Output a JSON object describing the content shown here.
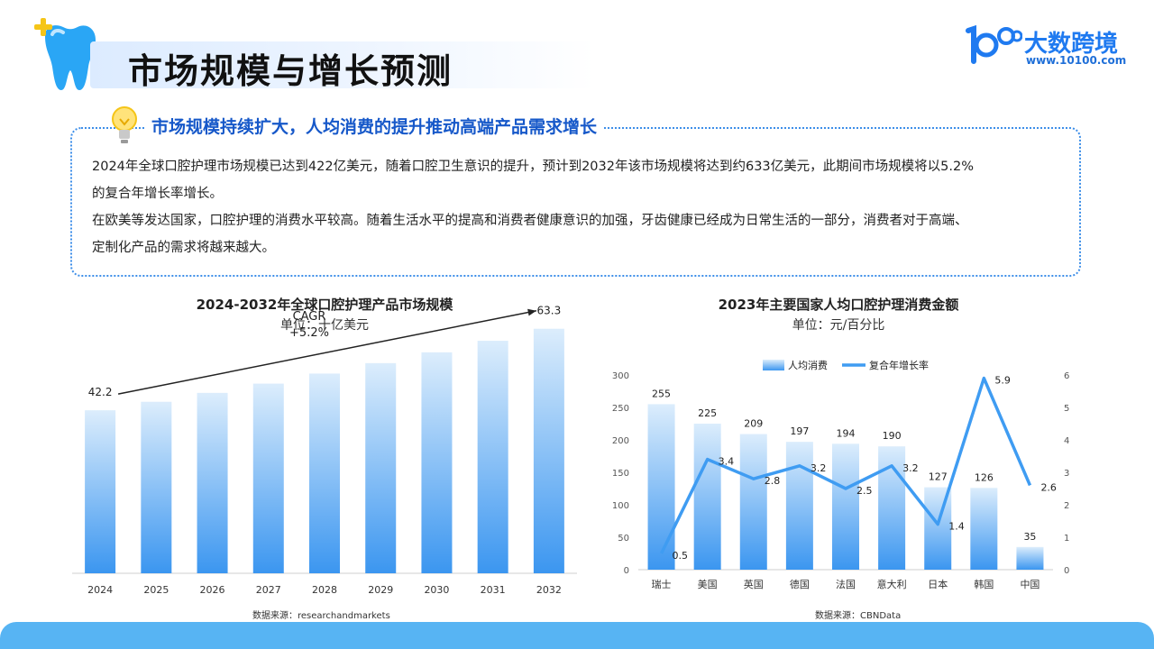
{
  "header": {
    "title": "市场规模与增长预测",
    "logo_text": "大数跨境",
    "logo_url": "www.10100.com",
    "logo_mark": "100"
  },
  "summary": {
    "heading": "市场规模持续扩大，人均消费的提升推动高端产品需求增长",
    "lines": [
      "2024年全球口腔护理市场规模已达到422亿美元，随着口腔卫生意识的提升，预计到2032年该市场规模将达到约633亿美元，此期间市场规模将以5.2%",
      "的复合年增长率增长。",
      "在欧美等发达国家，口腔护理的消费水平较高。随着生活水平的提高和消费者健康意识的加强，牙齿健康已经成为日常生活的一部分，消费者对于高端、",
      "定制化产品的需求将越来越大。"
    ]
  },
  "chart_data": [
    {
      "type": "bar",
      "title": "2024-2032年全球口腔护理产品市场规模",
      "unit": "单位：十亿美元",
      "categories": [
        "2024",
        "2025",
        "2026",
        "2027",
        "2028",
        "2029",
        "2030",
        "2031",
        "2032"
      ],
      "values": [
        42.2,
        44.4,
        46.7,
        49.1,
        51.7,
        54.4,
        57.2,
        60.2,
        63.3
      ],
      "data_labels": {
        "2024": "42.2",
        "2032": "63.3"
      },
      "annotation": {
        "line1": "CAGR",
        "line2": "+5.2%"
      },
      "ylim": [
        0,
        70
      ],
      "source": "数据来源：researchandmarkets"
    },
    {
      "type": "bar+line",
      "title": "2023年主要国家人均口腔护理消费金额",
      "unit": "单位：元/百分比",
      "categories": [
        "瑞士",
        "美国",
        "英国",
        "德国",
        "法国",
        "意大利",
        "日本",
        "韩国",
        "中国"
      ],
      "series": [
        {
          "name": "人均消费",
          "axis": "left",
          "values": [
            255,
            225,
            209,
            197,
            194,
            190,
            127,
            126,
            35
          ]
        },
        {
          "name": "复合年增长率",
          "axis": "right",
          "values": [
            0.5,
            3.4,
            2.8,
            3.2,
            2.5,
            3.2,
            1.4,
            5.9,
            2.6
          ]
        }
      ],
      "left_axis": {
        "min": 0,
        "max": 300,
        "ticks": [
          "0",
          "50",
          "100",
          "150",
          "200",
          "250",
          "300"
        ]
      },
      "right_axis": {
        "min": 0,
        "max": 6,
        "ticks": [
          "0",
          "1",
          "2",
          "3",
          "4",
          "5",
          "6"
        ]
      },
      "legend_position": "top",
      "source": "数据来源：CBNData"
    }
  ],
  "colors": {
    "accent": "#1f7af0",
    "bar_top": "#dcedfc",
    "bar_bottom": "#3b96f0",
    "line": "#3f9cf2",
    "tooth": "#2aa6f5",
    "sparkle": "#f5c518",
    "bottom_band": "#57b4f3"
  }
}
